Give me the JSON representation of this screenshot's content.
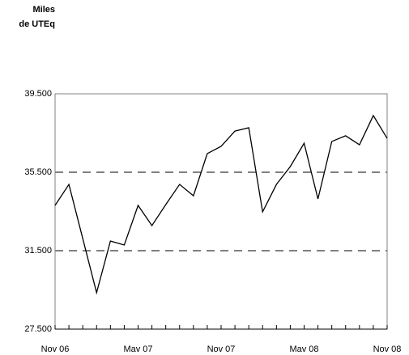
{
  "chart_data": {
    "type": "line",
    "title": [
      "Miles",
      "de UTEq"
    ],
    "categories": [
      "Nov 06",
      null,
      null,
      null,
      null,
      null,
      "Mav 07",
      null,
      null,
      null,
      null,
      null,
      "Nov 07",
      null,
      null,
      null,
      null,
      null,
      "Mav 08",
      null,
      null,
      null,
      null,
      null,
      "Nov 08"
    ],
    "series": [
      {
        "color": "#000000",
        "values": [
          33810,
          34880,
          32120,
          29360,
          31990,
          31790,
          33810,
          32780,
          33850,
          34880,
          34300,
          36450,
          36820,
          37600,
          37770,
          33480,
          34880,
          35790,
          36980,
          34140,
          37070,
          37360,
          36900,
          38390,
          37230
        ]
      }
    ],
    "ylim": [
      27500,
      39500
    ],
    "yticks": [
      {
        "value": 27500,
        "label": "27.500"
      },
      {
        "value": 31500,
        "label": "31.500"
      },
      {
        "value": 35500,
        "label": "35.500"
      },
      {
        "value": 39500,
        "label": "39.500"
      }
    ],
    "grid": true
  }
}
